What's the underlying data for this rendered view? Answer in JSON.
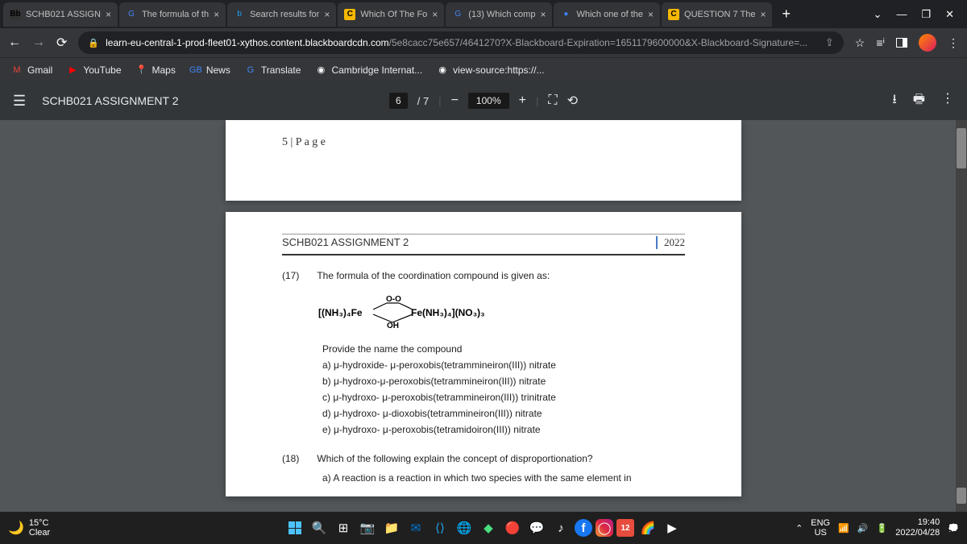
{
  "tabs": [
    {
      "icon": "Bb",
      "icon_bg": "#333",
      "label": "SCHB021 ASSIGN"
    },
    {
      "icon": "G",
      "icon_color": "#4285f4",
      "label": "The formula of th"
    },
    {
      "icon": "b",
      "icon_color": "#1da1f2",
      "label": "Search results for"
    },
    {
      "icon": "C",
      "icon_bg": "#f5b800",
      "label": "Which Of The Fo"
    },
    {
      "icon": "G",
      "icon_color": "#4285f4",
      "label": "(13) Which comp"
    },
    {
      "icon": "●",
      "icon_color": "#3b82f6",
      "label": "Which one of the"
    },
    {
      "icon": "C",
      "icon_bg": "#f5b800",
      "label": "QUESTION 7 The"
    }
  ],
  "url": {
    "domain": "learn-eu-central-1-prod-fleet01-xythos.content.blackboardcdn.com",
    "path": "/5e8cacc75e657/4641270?X-Blackboard-Expiration=1651179600000&X-Blackboard-Signature=..."
  },
  "bookmarks": [
    {
      "icon": "M",
      "color": "#ea4335",
      "label": "Gmail"
    },
    {
      "icon": "▶",
      "color": "#ff0000",
      "label": "YouTube"
    },
    {
      "icon": "📍",
      "color": "#34a853",
      "label": "Maps"
    },
    {
      "icon": "GB",
      "color": "#4285f4",
      "label": "News"
    },
    {
      "icon": "G",
      "color": "#4285f4",
      "label": "Translate"
    },
    {
      "icon": "◉",
      "color": "#fff",
      "label": "Cambridge Internat..."
    },
    {
      "icon": "◉",
      "color": "#fff",
      "label": "view-source:https://..."
    }
  ],
  "pdf": {
    "title": "SCHB021 ASSIGNMENT 2",
    "page_current": "6",
    "page_total": "7",
    "zoom": "100%"
  },
  "page1_footer": "5 | P a g e",
  "page2": {
    "header_title": "SCHB021 ASSIGNMENT 2",
    "year": "2022",
    "q17": {
      "num": "(17)",
      "text": "The formula of the coordination compound is given as:"
    },
    "formula": "[(NH₃)₄Fe     Fe(NH₃)₄](NO₃)₃",
    "prompt": "Provide the name the compound",
    "opts": [
      "a)  μ-hydroxide- μ-peroxobis(tetrammineiron(III)) nitrate",
      "b)  μ-hydroxo-μ-peroxobis(tetrammineiron(III)) nitrate",
      "c)  μ-hydroxo- μ-peroxobis(tetrammineiron(III)) trinitrate",
      "d)  μ-hydroxo- μ-dioxobis(tetrammineiron(III)) nitrate",
      "e)  μ-hydroxo- μ-peroxobis(tetramidoiron(III)) nitrate"
    ],
    "q18": {
      "num": "(18)",
      "text": "Which of the following explain the concept of disproportionation?"
    },
    "q18a": "a)  A reaction is a reaction in which two species with the same element in"
  },
  "weather": {
    "temp": "15°C",
    "cond": "Clear"
  },
  "tray": {
    "lang1": "ENG",
    "lang2": "US",
    "time": "19:40",
    "date": "2022/04/28"
  }
}
